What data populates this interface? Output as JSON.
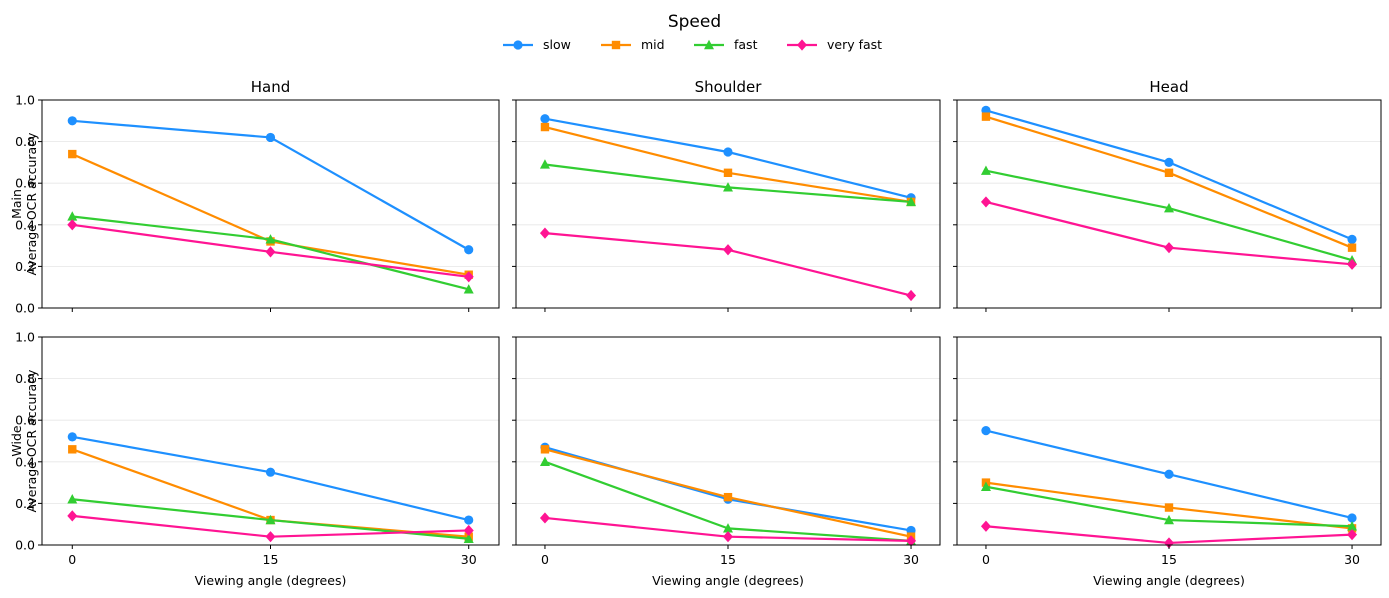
{
  "chart_data": {
    "type": "line",
    "legend": {
      "title": "Speed",
      "placement": "top-center",
      "entries": [
        {
          "name": "slow",
          "color": "#1e90ff",
          "marker": "circle"
        },
        {
          "name": "mid",
          "color": "#ff8c00",
          "marker": "square"
        },
        {
          "name": "fast",
          "color": "#32cd32",
          "marker": "triangle"
        },
        {
          "name": "very fast",
          "color": "#ff1493",
          "marker": "diamond"
        }
      ]
    },
    "columns": [
      "Hand",
      "Shoulder",
      "Head"
    ],
    "rows": [
      {
        "label_top": "Main",
        "label_bottom": "Average OCR accuracy"
      },
      {
        "label_top": "Wide",
        "label_bottom": "Average OCR accuracy"
      }
    ],
    "xlabel": "Viewing angle (degrees)",
    "x": [
      0,
      15,
      30
    ],
    "x_ticks": [
      "0",
      "15",
      "30"
    ],
    "ylim": [
      0,
      1
    ],
    "y_ticks": [
      "0.0",
      "0.2",
      "0.4",
      "0.6",
      "0.8",
      "1.0"
    ],
    "grid": "horizontal",
    "panels": [
      {
        "row": 0,
        "col": 0,
        "series": [
          {
            "name": "slow",
            "values": [
              0.9,
              0.82,
              0.28
            ]
          },
          {
            "name": "mid",
            "values": [
              0.74,
              0.32,
              0.16
            ]
          },
          {
            "name": "fast",
            "values": [
              0.44,
              0.33,
              0.09
            ]
          },
          {
            "name": "very fast",
            "values": [
              0.4,
              0.27,
              0.15
            ]
          }
        ]
      },
      {
        "row": 0,
        "col": 1,
        "series": [
          {
            "name": "slow",
            "values": [
              0.91,
              0.75,
              0.53
            ]
          },
          {
            "name": "mid",
            "values": [
              0.87,
              0.65,
              0.51
            ]
          },
          {
            "name": "fast",
            "values": [
              0.69,
              0.58,
              0.51
            ]
          },
          {
            "name": "very fast",
            "values": [
              0.36,
              0.28,
              0.06
            ]
          }
        ]
      },
      {
        "row": 0,
        "col": 2,
        "series": [
          {
            "name": "slow",
            "values": [
              0.95,
              0.7,
              0.33
            ]
          },
          {
            "name": "mid",
            "values": [
              0.92,
              0.65,
              0.29
            ]
          },
          {
            "name": "fast",
            "values": [
              0.66,
              0.48,
              0.23
            ]
          },
          {
            "name": "very fast",
            "values": [
              0.51,
              0.29,
              0.21
            ]
          }
        ]
      },
      {
        "row": 1,
        "col": 0,
        "series": [
          {
            "name": "slow",
            "values": [
              0.52,
              0.35,
              0.12
            ]
          },
          {
            "name": "mid",
            "values": [
              0.46,
              0.12,
              0.04
            ]
          },
          {
            "name": "fast",
            "values": [
              0.22,
              0.12,
              0.03
            ]
          },
          {
            "name": "very fast",
            "values": [
              0.14,
              0.04,
              0.07
            ]
          }
        ]
      },
      {
        "row": 1,
        "col": 1,
        "series": [
          {
            "name": "slow",
            "values": [
              0.47,
              0.22,
              0.07
            ]
          },
          {
            "name": "mid",
            "values": [
              0.46,
              0.23,
              0.04
            ]
          },
          {
            "name": "fast",
            "values": [
              0.4,
              0.08,
              0.02
            ]
          },
          {
            "name": "very fast",
            "values": [
              0.13,
              0.04,
              0.02
            ]
          }
        ]
      },
      {
        "row": 1,
        "col": 2,
        "series": [
          {
            "name": "slow",
            "values": [
              0.55,
              0.34,
              0.13
            ]
          },
          {
            "name": "mid",
            "values": [
              0.3,
              0.18,
              0.08
            ]
          },
          {
            "name": "fast",
            "values": [
              0.28,
              0.12,
              0.09
            ]
          },
          {
            "name": "very fast",
            "values": [
              0.09,
              0.01,
              0.05
            ]
          }
        ]
      }
    ]
  }
}
